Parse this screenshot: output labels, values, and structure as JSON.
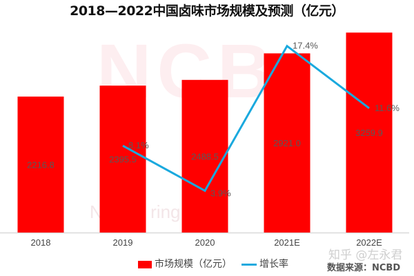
{
  "title": "2018—2022中国卤味市场规模及预测（亿元）",
  "watermark": {
    "logo": "NCB",
    "subtitle": "New ... ring B"
  },
  "zhihu_watermark": "知乎 @左永君",
  "source": "数据来源：NCBD",
  "legend": {
    "bar": "市场规模（亿元）",
    "line": "增长率"
  },
  "colors": {
    "bar": "#ff0000",
    "line": "#1aa9de",
    "label": "#595959"
  },
  "chart_data": {
    "type": "bar+line",
    "title": "2018—2022中国卤味市场规模及预测（亿元）",
    "categories": [
      "2018",
      "2019",
      "2020",
      "2021E",
      "2022E"
    ],
    "series": [
      {
        "name": "市场规模（亿元）",
        "type": "bar",
        "values": [
          2216.8,
          2395.5,
          2488.5,
          2921.0,
          3259.9
        ],
        "labels": [
          "2216.8",
          "2395.5",
          "2488.5",
          "2921.0",
          "3259.9"
        ]
      },
      {
        "name": "增长率",
        "type": "line",
        "axis": "secondary",
        "values": [
          null,
          8.1,
          3.9,
          17.4,
          11.6
        ],
        "labels": [
          "",
          "8.1%",
          "3.9%",
          "17.4%",
          "11.6%"
        ]
      }
    ],
    "ylim": [
      0,
      3600
    ],
    "y2lim": [
      0,
      20.6
    ],
    "grid": false,
    "legend_position": "bottom"
  }
}
